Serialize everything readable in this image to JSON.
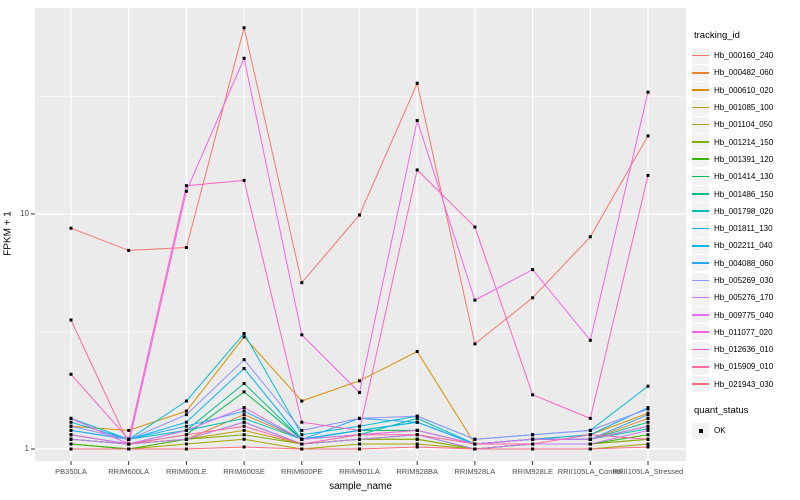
{
  "figure": {
    "background": "#ffffff",
    "panel_background": "#ebebeb",
    "gridline_color": "#ffffff",
    "tick_text_color": "#4d4d4d",
    "point_color": "#000000"
  },
  "axes": {
    "x_title": "sample_name",
    "y_title": "FPKM + 1",
    "y_tick_labels": [
      "10",
      "1"
    ],
    "y_major_breaks": [
      10,
      1
    ],
    "y_minor_breaks": [
      31.62,
      3.162
    ]
  },
  "legend": {
    "color_title": "tracking_id",
    "shape_title": "quant_status",
    "shape_items": [
      {
        "label": "OK"
      }
    ]
  },
  "chart_data": {
    "type": "line",
    "title": "",
    "xlabel": "sample_name",
    "ylabel": "FPKM + 1",
    "y_scale": "log10",
    "ylim": [
      0.93,
      75
    ],
    "grid": true,
    "legend_position": "right",
    "categories": [
      "PB350LA",
      "RRIM600LA",
      "RRIM600LE",
      "RRIM600SE",
      "RRIM600PE",
      "RRIM901LA",
      "RRIM928BA",
      "RRIM928LA",
      "RRIM928LE",
      "RRII105LA_Control",
      "RRII105LA_Stressed"
    ],
    "series": [
      {
        "name": "Hb_000160_240",
        "color": "#F8766D",
        "values": [
          8.7,
          7.0,
          7.2,
          62,
          5.1,
          9.9,
          36,
          2.8,
          4.4,
          8.0,
          21.5
        ]
      },
      {
        "name": "Hb_000482_060",
        "color": "#EA8331",
        "values": [
          1.15,
          1.05,
          1.1,
          1.4,
          1.1,
          1.15,
          1.2,
          1.05,
          1.1,
          1.1,
          1.35
        ]
      },
      {
        "name": "Hb_000610_020",
        "color": "#D89000",
        "values": [
          1.25,
          1.2,
          1.45,
          3.0,
          1.6,
          1.95,
          2.6,
          1.05,
          1.1,
          1.15,
          1.42
        ]
      },
      {
        "name": "Hb_001085_100",
        "color": "#C09B00",
        "values": [
          1.1,
          1.05,
          1.1,
          1.2,
          1.05,
          1.1,
          1.1,
          1.0,
          1.05,
          1.05,
          1.1
        ]
      },
      {
        "name": "Hb_001104_050",
        "color": "#A4A500",
        "values": [
          1.05,
          1.0,
          1.05,
          1.1,
          1.0,
          1.05,
          1.05,
          1.0,
          1.0,
          1.0,
          1.05
        ]
      },
      {
        "name": "Hb_001214_150",
        "color": "#7CAE00",
        "values": [
          1.1,
          1.05,
          1.1,
          1.15,
          1.05,
          1.1,
          1.1,
          1.0,
          1.05,
          1.05,
          1.1
        ]
      },
      {
        "name": "Hb_001391_120",
        "color": "#35B600",
        "values": [
          1.05,
          1.0,
          1.1,
          1.3,
          1.05,
          1.1,
          1.15,
          1.0,
          1.05,
          1.05,
          1.15
        ]
      },
      {
        "name": "Hb_001414_130",
        "color": "#00BC51",
        "values": [
          1.1,
          1.05,
          1.15,
          1.75,
          1.1,
          1.2,
          1.2,
          1.05,
          1.1,
          1.1,
          1.25
        ]
      },
      {
        "name": "Hb_001486_150",
        "color": "#00C087",
        "values": [
          1.15,
          1.05,
          1.2,
          1.9,
          1.1,
          1.2,
          1.3,
          1.05,
          1.1,
          1.1,
          1.3
        ]
      },
      {
        "name": "Hb_001798_020",
        "color": "#00C0B4",
        "values": [
          1.2,
          1.1,
          1.2,
          1.35,
          1.1,
          1.15,
          1.35,
          1.05,
          1.1,
          1.1,
          1.22
        ]
      },
      {
        "name": "Hb_001811_130",
        "color": "#00BDD4",
        "values": [
          1.35,
          1.1,
          1.6,
          3.1,
          1.15,
          1.25,
          1.38,
          1.1,
          1.15,
          1.2,
          1.85
        ]
      },
      {
        "name": "Hb_002211_040",
        "color": "#00B4EF",
        "values": [
          1.3,
          1.1,
          1.3,
          2.2,
          1.1,
          1.2,
          1.3,
          1.05,
          1.1,
          1.15,
          1.5
        ]
      },
      {
        "name": "Hb_004088_060",
        "color": "#27A8FF",
        "values": [
          1.2,
          1.1,
          1.25,
          1.45,
          1.1,
          1.35,
          1.3,
          1.05,
          1.1,
          1.1,
          1.4
        ]
      },
      {
        "name": "Hb_005269_030",
        "color": "#8F91FF",
        "values": [
          1.25,
          1.1,
          1.4,
          2.4,
          1.2,
          1.35,
          1.38,
          1.1,
          1.15,
          1.2,
          1.48
        ]
      },
      {
        "name": "Hb_005276_170",
        "color": "#C27BFF",
        "values": [
          1.1,
          1.05,
          1.1,
          1.3,
          1.05,
          1.1,
          1.15,
          1.0,
          1.05,
          1.05,
          1.2
        ]
      },
      {
        "name": "Hb_009775_040",
        "color": "#E36EF6",
        "values": [
          1.15,
          1.05,
          1.2,
          1.5,
          1.1,
          1.15,
          1.2,
          1.05,
          1.1,
          1.1,
          1.25
        ]
      },
      {
        "name": "Hb_011077_020",
        "color": "#F562E4",
        "values": [
          1.35,
          1.05,
          12.5,
          46,
          3.06,
          1.74,
          25,
          4.3,
          5.8,
          2.9,
          33
        ]
      },
      {
        "name": "Hb_012636_010",
        "color": "#FF61C7",
        "values": [
          2.08,
          1.1,
          13.2,
          13.9,
          1.3,
          1.2,
          15.4,
          8.8,
          1.7,
          1.35,
          14.6
        ]
      },
      {
        "name": "Hb_015909_010",
        "color": "#FF67A2",
        "values": [
          3.54,
          1.05,
          1.15,
          1.25,
          1.05,
          1.15,
          1.15,
          1.05,
          1.05,
          1.15,
          1.1
        ]
      },
      {
        "name": "Hb_021943_030",
        "color": "#FF6C83",
        "values": [
          1.0,
          1.0,
          1.0,
          1.02,
          1.0,
          1.0,
          1.02,
          1.0,
          1.0,
          1.0,
          1.02
        ]
      }
    ]
  }
}
